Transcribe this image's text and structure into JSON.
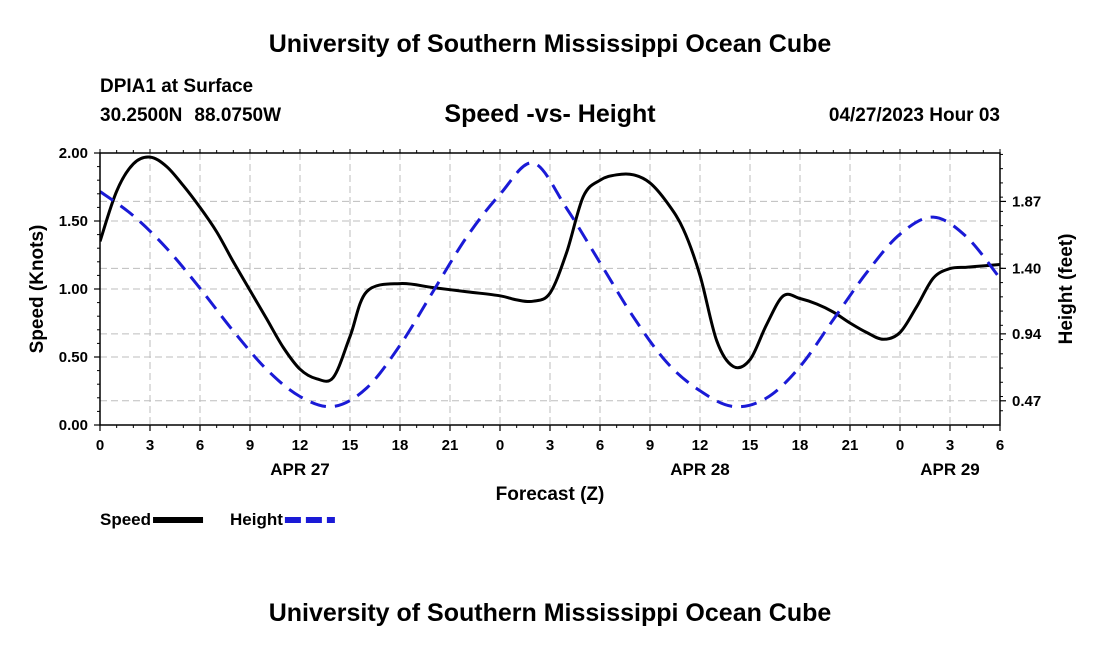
{
  "header": {
    "title": "University of Southern Mississippi Ocean Cube",
    "station": "DPIA1 at Surface",
    "latitude": "30.2500N",
    "longitude": "88.0750W",
    "subtitle": "Speed -vs- Height",
    "datetime": "04/27/2023 Hour 03"
  },
  "footer": {
    "title": "University of Southern Mississippi Ocean Cube"
  },
  "chart_data": {
    "type": "line",
    "title": "Speed -vs- Height",
    "xlabel": "Forecast (Z)",
    "ylabel": "Speed (Knots)",
    "y2label": "Height (feet)",
    "grid": true,
    "legend_position": "bottom-left",
    "xlim": [
      0,
      54
    ],
    "xticks": [
      0,
      3,
      6,
      9,
      12,
      15,
      18,
      21,
      24,
      27,
      30,
      33,
      36,
      39,
      42,
      45,
      48,
      51,
      54
    ],
    "xtick_labels": [
      "0",
      "3",
      "6",
      "9",
      "12",
      "15",
      "18",
      "21",
      "0",
      "3",
      "6",
      "9",
      "12",
      "15",
      "18",
      "21",
      "0",
      "3",
      "6"
    ],
    "date_labels": [
      {
        "x": 12,
        "label": "APR 27"
      },
      {
        "x": 36,
        "label": "APR 28"
      },
      {
        "x": 51,
        "label": "APR 29"
      }
    ],
    "ylim": [
      0,
      2.0
    ],
    "yticks": [
      0,
      0.5,
      1.0,
      1.5,
      2.0
    ],
    "ytick_labels": [
      "0.00",
      "0.50",
      "1.00",
      "1.50",
      "2.00"
    ],
    "y2lim": [
      0.3,
      2.21
    ],
    "y2ticks": [
      0.47,
      0.94,
      1.4,
      1.87
    ],
    "y2tick_labels": [
      "0.47",
      "0.94",
      "1.40",
      "1.87"
    ],
    "series": [
      {
        "name": "Speed",
        "axis": "left",
        "color": "#000000",
        "dash": "solid",
        "x": [
          0,
          1,
          2,
          3,
          4,
          5,
          6,
          7,
          8,
          9,
          10,
          11,
          12,
          13,
          14,
          15,
          16,
          18,
          20,
          22,
          24,
          25,
          26,
          27,
          28,
          29,
          30,
          31,
          32,
          33,
          34,
          35,
          36,
          37,
          38,
          39,
          40,
          41,
          42,
          43,
          44,
          45,
          46,
          47,
          48,
          49,
          50,
          51,
          52,
          53,
          54
        ],
        "values": [
          1.35,
          1.72,
          1.92,
          1.97,
          1.9,
          1.76,
          1.6,
          1.42,
          1.2,
          0.99,
          0.78,
          0.57,
          0.41,
          0.34,
          0.35,
          0.65,
          0.98,
          1.04,
          1.01,
          0.98,
          0.95,
          0.92,
          0.91,
          0.97,
          1.27,
          1.68,
          1.8,
          1.84,
          1.84,
          1.78,
          1.64,
          1.44,
          1.1,
          0.62,
          0.43,
          0.48,
          0.74,
          0.95,
          0.93,
          0.89,
          0.83,
          0.75,
          0.68,
          0.63,
          0.68,
          0.87,
          1.08,
          1.15,
          1.16,
          1.17,
          1.18
        ]
      },
      {
        "name": "Height",
        "axis": "right",
        "color": "#1a1ad6",
        "dash": "dashed",
        "x": [
          0,
          2,
          4,
          6,
          8,
          10,
          12,
          14,
          16,
          18,
          20,
          22,
          24,
          26,
          28,
          30,
          32,
          34,
          36,
          38,
          40,
          42,
          44,
          46,
          48,
          50,
          52,
          54
        ],
        "values": [
          1.94,
          1.77,
          1.54,
          1.26,
          0.96,
          0.69,
          0.5,
          0.43,
          0.56,
          0.86,
          1.24,
          1.62,
          1.92,
          2.14,
          1.82,
          1.44,
          1.06,
          0.74,
          0.54,
          0.43,
          0.49,
          0.71,
          1.04,
          1.37,
          1.64,
          1.76,
          1.62,
          1.33
        ]
      }
    ],
    "legend": [
      {
        "label": "Speed",
        "series": "Speed"
      },
      {
        "label": "Height",
        "series": "Height"
      }
    ]
  }
}
